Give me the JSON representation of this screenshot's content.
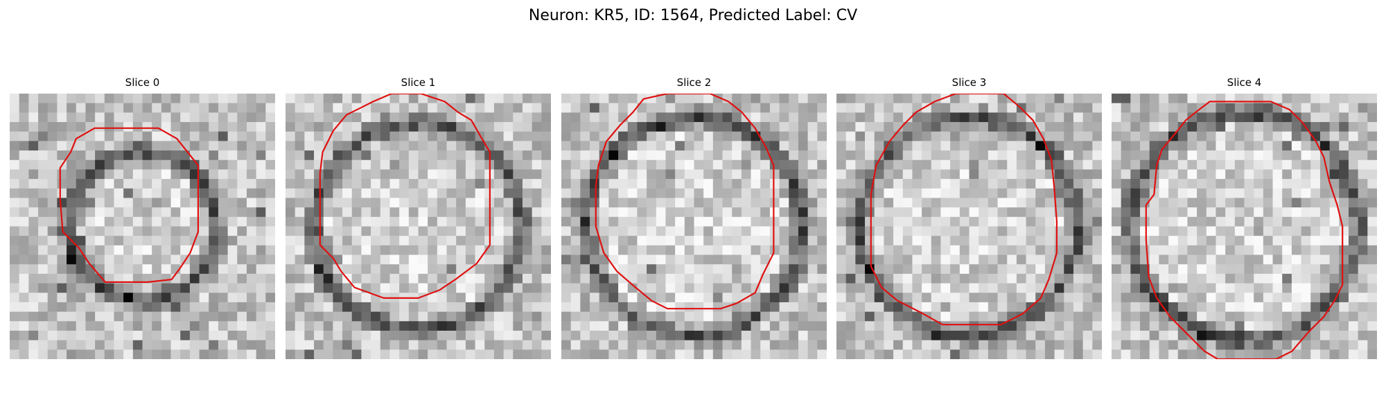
{
  "figure": {
    "title": "Neuron: KR5, ID: 1564, Predicted Label: CV"
  },
  "contour_color": "#e01010",
  "colormap": "grayscale",
  "panels": [
    {
      "title": "Slice 0",
      "seed": 11,
      "ring_radius": 0.25,
      "contour": [
        [
          0.56,
          0.13
        ],
        [
          0.63,
          0.17
        ],
        [
          0.67,
          0.22
        ],
        [
          0.71,
          0.27
        ],
        [
          0.71,
          0.4
        ],
        [
          0.71,
          0.52
        ],
        [
          0.68,
          0.6
        ],
        [
          0.64,
          0.66
        ],
        [
          0.61,
          0.7
        ],
        [
          0.52,
          0.71
        ],
        [
          0.44,
          0.71
        ],
        [
          0.36,
          0.71
        ],
        [
          0.3,
          0.64
        ],
        [
          0.26,
          0.58
        ],
        [
          0.2,
          0.52
        ],
        [
          0.19,
          0.4
        ],
        [
          0.19,
          0.28
        ],
        [
          0.23,
          0.22
        ],
        [
          0.25,
          0.17
        ],
        [
          0.32,
          0.13
        ],
        [
          0.44,
          0.13
        ]
      ]
    },
    {
      "title": "Slice 1",
      "seed": 23,
      "ring_radius": 0.36,
      "contour": [
        [
          0.51,
          0.0
        ],
        [
          0.6,
          0.03
        ],
        [
          0.65,
          0.07
        ],
        [
          0.7,
          0.1
        ],
        [
          0.74,
          0.17
        ],
        [
          0.77,
          0.22
        ],
        [
          0.77,
          0.4
        ],
        [
          0.77,
          0.57
        ],
        [
          0.72,
          0.64
        ],
        [
          0.64,
          0.7
        ],
        [
          0.58,
          0.74
        ],
        [
          0.5,
          0.77
        ],
        [
          0.37,
          0.77
        ],
        [
          0.26,
          0.73
        ],
        [
          0.21,
          0.67
        ],
        [
          0.18,
          0.62
        ],
        [
          0.13,
          0.57
        ],
        [
          0.13,
          0.45
        ],
        [
          0.13,
          0.3
        ],
        [
          0.14,
          0.22
        ],
        [
          0.18,
          0.14
        ],
        [
          0.23,
          0.08
        ],
        [
          0.29,
          0.05
        ],
        [
          0.33,
          0.03
        ],
        [
          0.4,
          0.0
        ]
      ]
    },
    {
      "title": "Slice 2",
      "seed": 37,
      "ring_radius": 0.38,
      "contour": [
        [
          0.56,
          0.0
        ],
        [
          0.63,
          0.03
        ],
        [
          0.68,
          0.07
        ],
        [
          0.73,
          0.13
        ],
        [
          0.77,
          0.2
        ],
        [
          0.8,
          0.27
        ],
        [
          0.8,
          0.42
        ],
        [
          0.8,
          0.6
        ],
        [
          0.76,
          0.68
        ],
        [
          0.73,
          0.75
        ],
        [
          0.66,
          0.79
        ],
        [
          0.6,
          0.81
        ],
        [
          0.5,
          0.81
        ],
        [
          0.4,
          0.81
        ],
        [
          0.34,
          0.78
        ],
        [
          0.28,
          0.73
        ],
        [
          0.21,
          0.67
        ],
        [
          0.16,
          0.6
        ],
        [
          0.13,
          0.5
        ],
        [
          0.13,
          0.35
        ],
        [
          0.14,
          0.27
        ],
        [
          0.17,
          0.18
        ],
        [
          0.22,
          0.12
        ],
        [
          0.27,
          0.07
        ],
        [
          0.31,
          0.02
        ],
        [
          0.4,
          0.0
        ]
      ]
    },
    {
      "title": "Slice 3",
      "seed": 53,
      "ring_radius": 0.38,
      "contour": [
        [
          0.63,
          0.0
        ],
        [
          0.69,
          0.05
        ],
        [
          0.74,
          0.1
        ],
        [
          0.78,
          0.17
        ],
        [
          0.81,
          0.25
        ],
        [
          0.82,
          0.35
        ],
        [
          0.83,
          0.48
        ],
        [
          0.83,
          0.6
        ],
        [
          0.8,
          0.7
        ],
        [
          0.77,
          0.77
        ],
        [
          0.7,
          0.83
        ],
        [
          0.62,
          0.87
        ],
        [
          0.5,
          0.87
        ],
        [
          0.4,
          0.87
        ],
        [
          0.31,
          0.82
        ],
        [
          0.23,
          0.78
        ],
        [
          0.17,
          0.73
        ],
        [
          0.13,
          0.65
        ],
        [
          0.13,
          0.5
        ],
        [
          0.13,
          0.38
        ],
        [
          0.15,
          0.27
        ],
        [
          0.2,
          0.18
        ],
        [
          0.25,
          0.12
        ],
        [
          0.3,
          0.07
        ],
        [
          0.37,
          0.03
        ],
        [
          0.45,
          0.0
        ]
      ]
    },
    {
      "title": "Slice 4",
      "seed": 71,
      "ring_radius": 0.4,
      "contour": [
        [
          0.6,
          0.03
        ],
        [
          0.67,
          0.06
        ],
        [
          0.72,
          0.11
        ],
        [
          0.77,
          0.18
        ],
        [
          0.8,
          0.24
        ],
        [
          0.82,
          0.33
        ],
        [
          0.85,
          0.42
        ],
        [
          0.87,
          0.5
        ],
        [
          0.87,
          0.6
        ],
        [
          0.87,
          0.72
        ],
        [
          0.84,
          0.78
        ],
        [
          0.8,
          0.84
        ],
        [
          0.74,
          0.9
        ],
        [
          0.68,
          0.97
        ],
        [
          0.62,
          1.0
        ],
        [
          0.4,
          1.0
        ],
        [
          0.35,
          0.97
        ],
        [
          0.28,
          0.9
        ],
        [
          0.22,
          0.84
        ],
        [
          0.17,
          0.77
        ],
        [
          0.14,
          0.69
        ],
        [
          0.13,
          0.55
        ],
        [
          0.13,
          0.42
        ],
        [
          0.16,
          0.38
        ],
        [
          0.17,
          0.27
        ],
        [
          0.19,
          0.21
        ],
        [
          0.24,
          0.15
        ],
        [
          0.28,
          0.1
        ],
        [
          0.33,
          0.06
        ],
        [
          0.37,
          0.03
        ],
        [
          0.48,
          0.03
        ]
      ]
    }
  ]
}
